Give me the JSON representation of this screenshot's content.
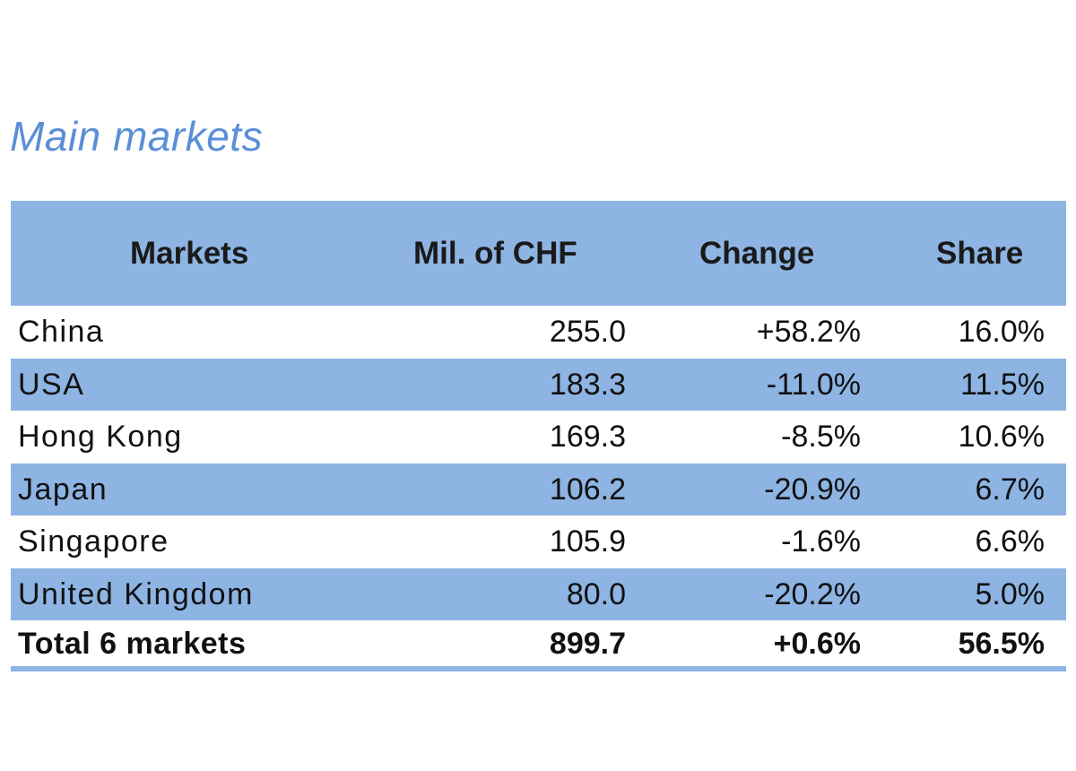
{
  "title": "Main markets",
  "table": {
    "headers": {
      "markets": "Markets",
      "mil_chf": "Mil. of CHF",
      "change": "Change",
      "share": "Share"
    },
    "rows": [
      {
        "market": "China",
        "mil_chf": "255.0",
        "change": "+58.2%",
        "share": "16.0%"
      },
      {
        "market": "USA",
        "mil_chf": "183.3",
        "change": "-11.0%",
        "share": "11.5%"
      },
      {
        "market": "Hong Kong",
        "mil_chf": "169.3",
        "change": "-8.5%",
        "share": "10.6%"
      },
      {
        "market": "Japan",
        "mil_chf": "106.2",
        "change": "-20.9%",
        "share": "6.7%"
      },
      {
        "market": "Singapore",
        "mil_chf": "105.9",
        "change": "-1.6%",
        "share": "6.6%"
      },
      {
        "market": "United Kingdom",
        "mil_chf": "80.0",
        "change": "-20.2%",
        "share": "5.0%"
      }
    ],
    "total": {
      "market": "Total 6 markets",
      "mil_chf": "899.7",
      "change": "+0.6%",
      "share": "56.5%"
    }
  },
  "colors": {
    "title": "#5b8fd6",
    "band": "#8db4e3"
  }
}
